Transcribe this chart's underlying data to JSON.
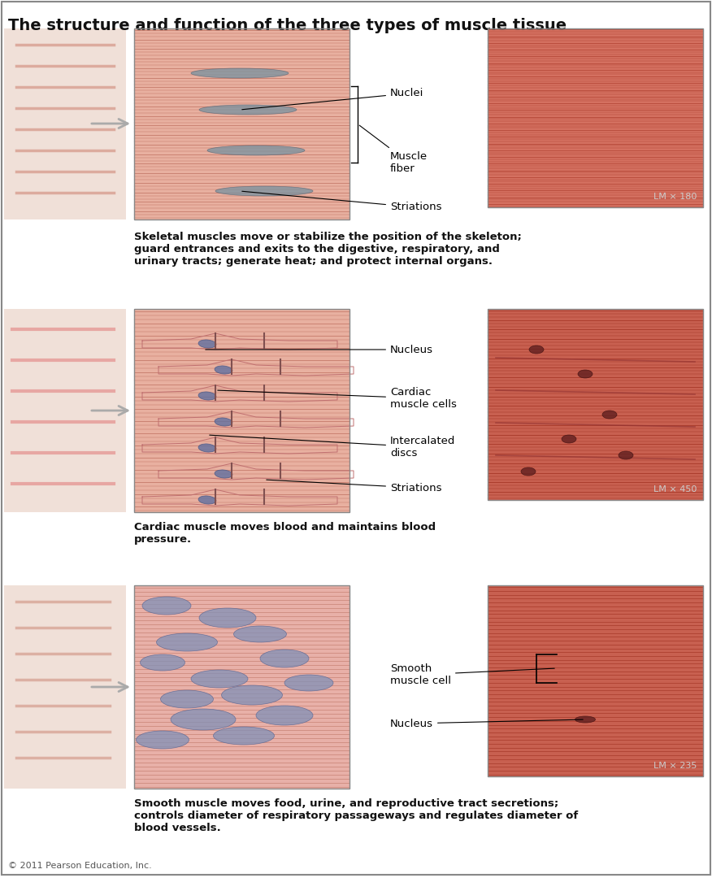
{
  "title": "The structure and function of the three types of muscle tissue",
  "title_fontsize": 14,
  "bg_color": "#ffffff",
  "border_color": "#333333",
  "sections": [
    {
      "name": "skeletal",
      "illustration_color_light": "#e8a090",
      "illustration_color_dark": "#c06050",
      "lm_color": "#d44040",
      "lm_bg": "#c87060",
      "lm_text": "LM × 180",
      "labels": [
        "Nuclei",
        "Muscle\nfiber",
        "Striations"
      ],
      "description": "Skeletal muscles move or stabilize the position of the skeleton;\nguard entrances and exits to the digestive, respiratory, and\nurinary tracts; generate heat; and protect internal organs."
    },
    {
      "name": "cardiac",
      "illustration_color_light": "#e8a090",
      "illustration_color_dark": "#c06050",
      "lm_color": "#d44040",
      "lm_bg": "#c87060",
      "lm_text": "LM × 450",
      "labels": [
        "Nucleus",
        "Cardiac\nmuscle cells",
        "Intercalated\ndiscs",
        "Striations"
      ],
      "description": "Cardiac muscle moves blood and maintains blood\npressure."
    },
    {
      "name": "smooth",
      "illustration_color_light": "#e8a090",
      "illustration_color_dark": "#c06050",
      "lm_color": "#d44040",
      "lm_bg": "#c87060",
      "lm_text": "LM × 235",
      "labels": [
        "Smooth\nmuscle cell",
        "Nucleus"
      ],
      "description": "Smooth muscle moves food, urine, and reproductive tract secretions;\ncontrols diameter of respiratory passageways and regulates diameter of\nblood vessels."
    }
  ],
  "footer": "© 2011 Pearson Education, Inc.",
  "label_color": "#000000",
  "annotation_color": "#000000"
}
